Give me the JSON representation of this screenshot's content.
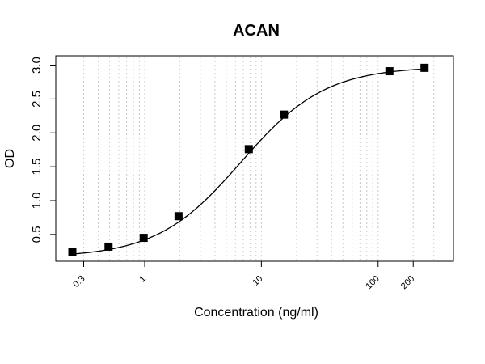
{
  "chart_data": {
    "type": "scatter",
    "title": "ACAN",
    "xlabel": "Concentration (ng/ml)",
    "ylabel": "OD",
    "x_scale": "log",
    "xlim": [
      0.24,
      340
    ],
    "ylim": [
      0.2,
      3.03
    ],
    "x_ticks": [
      {
        "value": 0.3,
        "label": "0.3"
      },
      {
        "value": 1,
        "label": "1"
      },
      {
        "value": 10,
        "label": "10"
      },
      {
        "value": 100,
        "label": "100"
      },
      {
        "value": 200,
        "label": "200"
      }
    ],
    "y_ticks": [
      {
        "value": 0.5,
        "label": "0.5"
      },
      {
        "value": 1.0,
        "label": "1.0"
      },
      {
        "value": 1.5,
        "label": "1.5"
      },
      {
        "value": 2.0,
        "label": "2.0"
      },
      {
        "value": 2.5,
        "label": "2.5"
      },
      {
        "value": 3.0,
        "label": "3.0"
      }
    ],
    "grid": "vertical dotted minor lines",
    "points": [
      {
        "x": 0.24,
        "y": 0.24
      },
      {
        "x": 0.49,
        "y": 0.32
      },
      {
        "x": 0.98,
        "y": 0.45
      },
      {
        "x": 1.95,
        "y": 0.77
      },
      {
        "x": 7.8,
        "y": 1.76
      },
      {
        "x": 15.6,
        "y": 2.27
      },
      {
        "x": 125,
        "y": 2.91
      },
      {
        "x": 250,
        "y": 2.96
      }
    ],
    "fit": {
      "model": "4PL",
      "bottom": 0.16,
      "top": 2.98,
      "ec50": 6.7,
      "hill": 1.2
    },
    "colors": {
      "points": "#000000",
      "curve": "#000000",
      "grid": "#c8c8c8"
    }
  }
}
